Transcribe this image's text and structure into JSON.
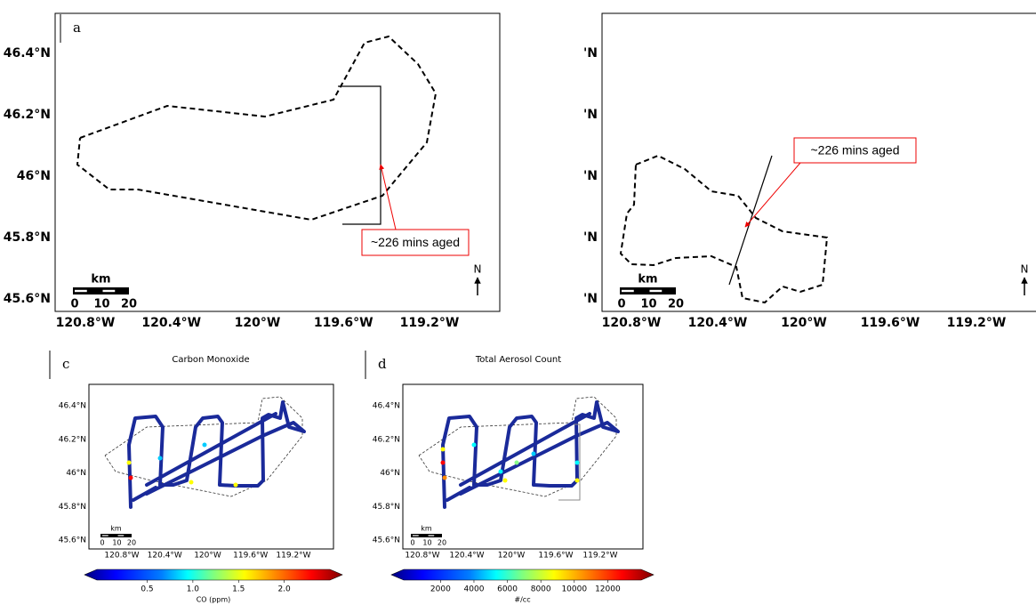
{
  "panels": [
    {
      "label": "a",
      "lat_labels": [
        "46.4°N",
        "46.2°N",
        "46°N",
        "45.8°N",
        "45.6°N"
      ],
      "lon_labels": [
        "120.8°W",
        "120.4°W",
        "120°W",
        "119.6°W",
        "119.2°W"
      ],
      "annotation": "~226 mins aged",
      "scale": {
        "unit": "km",
        "ticks": [
          "0",
          "10",
          "20"
        ]
      },
      "north": "N"
    },
    {
      "lat_labels": [
        "'N",
        "'N",
        "'N",
        "'N",
        "'N"
      ],
      "lon_labels": [
        "120.8°W",
        "120.4°W",
        "120°W",
        "119.6°W",
        "119.2°W"
      ],
      "annotation": "~226 mins aged",
      "scale": {
        "unit": "km",
        "ticks": [
          "0",
          "10",
          "20"
        ]
      },
      "north": "N"
    },
    {
      "label": "c",
      "title": "Carbon Monoxide",
      "lat_labels": [
        "46.4°N",
        "46.2°N",
        "46°N",
        "45.8°N",
        "45.6°N"
      ],
      "lon_labels": [
        "120.8°W",
        "120.4°W",
        "120°W",
        "119.6°W",
        "119.2°W"
      ],
      "scale": {
        "unit": "km",
        "ticks": [
          "0",
          "10",
          "20"
        ]
      },
      "colorbar": {
        "ticks": [
          "0.5",
          "1.0",
          "1.5",
          "2.0"
        ],
        "label": "CO (ppm)"
      }
    },
    {
      "label": "d",
      "title": "Total Aerosol Count",
      "lat_labels": [
        "46.4°N",
        "46.2°N",
        "46°N",
        "45.8°N",
        "45.6°N"
      ],
      "lon_labels": [
        "120.8°W",
        "120.4°W",
        "120°W",
        "119.6°W",
        "119.2°W"
      ],
      "scale": {
        "unit": "km",
        "ticks": [
          "0",
          "10",
          "20"
        ]
      },
      "colorbar": {
        "ticks": [
          "2000",
          "4000",
          "6000",
          "8000",
          "10000",
          "12000"
        ],
        "label": "#/cc"
      }
    }
  ]
}
